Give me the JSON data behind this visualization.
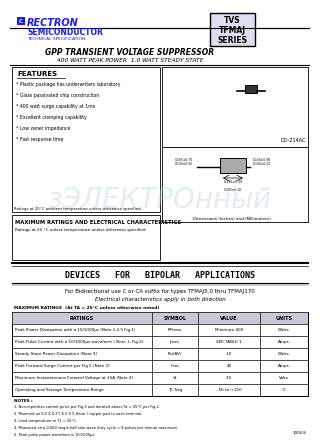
{
  "title_product": "GPP TRANSIENT VOLTAGE SUPPRESSOR",
  "title_subtitle": "400 WATT PEAK POWER  1.0 WATT STEADY STATE",
  "company_name": "RECTRON",
  "company_sub": "SEMICONDUCTOR",
  "company_spec": "TECHNICAL SPECIFICATION",
  "tvs_box_lines": [
    "TVS",
    "TFMAJ",
    "SERIES"
  ],
  "features_title": "FEATURES",
  "features": [
    "* Plastic package has underwriters laboratory",
    "* Glass passivated chip construction",
    "* 400 watt surge capability at 1ms",
    "* Excellent clamping capability",
    "* Low zener impedance",
    "* Fast response time"
  ],
  "package_name": "DO-214AC",
  "footnote_left": "Ratings at 25°C ambient temperature unless otherwise specified.",
  "max_ratings_title": "MAXIMUM RATINGS AND ELECTRICAL CHARACTERISTICS",
  "max_ratings_sub": "Ratings at 25 °C unless temperature unless otherwise specified.",
  "bipolar_title": "DEVICES   FOR   BIPOLAR   APPLICATIONS",
  "bipolar_line1": "For Bidirectional use C or CA suffix for types TFMAJ5.0 thru TFMAJ170",
  "bipolar_line2": "Electrical characteristics apply in both direction",
  "table_label": "MAXIMUM RATINGS  (At TA = 25°C unless otherwise noted)",
  "table_header": [
    "RATINGS",
    "SYMBOL",
    "VALUE",
    "UNITS"
  ],
  "table_rows": [
    [
      "Peak Power Dissipation with a 10/1000μs (Note 1,2,5 Fig.1)",
      "PPmax",
      "Minimum 400",
      "Watts"
    ],
    [
      "Peak Pulse Current with a 10/1000μs waveform ( Note 1, Fig.2)",
      "Ipsm",
      "SEE TABLE 1",
      "Amps"
    ],
    [
      "Steady State Power Dissipation (Note 3)",
      "Pω(AV)",
      "1.0",
      "Watts"
    ],
    [
      "Peak Forward Surge Current per Fig.5 (Note 3)",
      "Ifsm",
      "40",
      "Amps"
    ],
    [
      "Maximum Instantaneous Forward Voltage at 25A (Note 4)",
      "Vf",
      "3.5",
      "Volts"
    ],
    [
      "Operating and Storage Temperature Range",
      "TJ, Tstg",
      "-55 to +150",
      "°C"
    ]
  ],
  "notes_title": "NOTES : ",
  "notes": [
    "1. Non-repetitive current pulse per Fig.3 and derated above Ta = 25°C per Fig.2.",
    "2. Mounted on 0.2 X 0.2\"( 5.0 X 5.0mm ) copper pad to each terminal.",
    "3. Lead temperature at TL = 25°C.",
    "4. Measured on a 0.060 single half sine-wave duty cycle = 4 pulses per minute maximum.",
    "5. Peak pulse power waveform is 10/1000μs."
  ],
  "note_id": "1008.8",
  "bg_color": "#ffffff",
  "blue_color": "#1a1aff",
  "dark_blue": "#0000aa"
}
